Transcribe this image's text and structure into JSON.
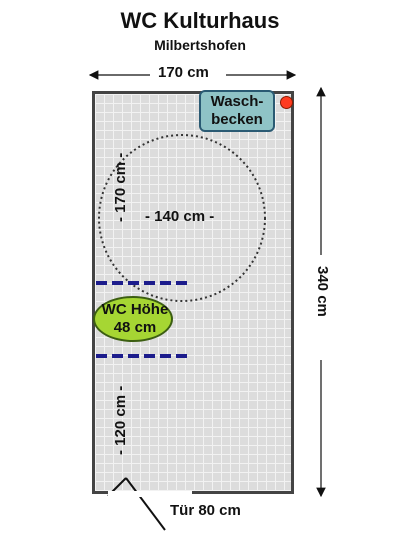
{
  "title": "WC Kulturhaus",
  "subtitle": "Milbertshofen",
  "dimensions": {
    "width": "170 cm",
    "length": "340 cm",
    "circle_vertical": "- 170 cm -",
    "circle_horizontal": "- 140 cm -",
    "front_clearance": "- 120 cm -"
  },
  "fixtures": {
    "sink_line1": "Wasch-",
    "sink_line2": "becken",
    "wc_line1": "WC Höhe",
    "wc_line2": "48 cm"
  },
  "door": {
    "label": "Tür 80 cm"
  },
  "colors": {
    "sink_fill": "#8fc3c6",
    "wc_fill": "#a6d633",
    "dash_marker": "#1c1c8c",
    "sink_dot": "#ff3b1f",
    "floor": "#dcdcdc"
  }
}
